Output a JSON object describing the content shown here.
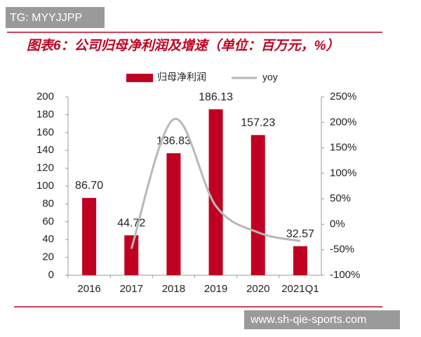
{
  "chart_data": {
    "type": "bar-line",
    "title": "图表6：公司归母净利润及增速（单位：百万元，%）",
    "categories": [
      "2016",
      "2017",
      "2018",
      "2019",
      "2020",
      "2021Q1"
    ],
    "series": [
      {
        "name": "归母净利润",
        "type": "bar",
        "color": "#c00022",
        "values": [
          86.7,
          44.72,
          136.83,
          186.13,
          157.23,
          32.57
        ],
        "value_labels": [
          "86.70",
          "44.72",
          "136.83",
          "186.13",
          "157.23",
          "32.57"
        ]
      },
      {
        "name": "yoy",
        "type": "line",
        "axis": "y2",
        "color": "#b8b8b8",
        "values": [
          null,
          -48,
          206,
          36,
          -16,
          -33
        ]
      }
    ],
    "ylim": [
      0,
      200
    ],
    "yticks": [
      0,
      20,
      40,
      60,
      80,
      100,
      120,
      140,
      160,
      180,
      200
    ],
    "y2lim": [
      -100,
      250
    ],
    "y2ticks": [
      {
        "value": -100,
        "label": "-100%"
      },
      {
        "value": -50,
        "label": "-50%"
      },
      {
        "value": 0,
        "label": "0%"
      },
      {
        "value": 50,
        "label": "50%"
      },
      {
        "value": 100,
        "label": "100%"
      },
      {
        "value": 150,
        "label": "150%"
      },
      {
        "value": 200,
        "label": "200%"
      },
      {
        "value": 250,
        "label": "250%"
      }
    ],
    "legend": "top"
  },
  "watermarks": [
    "TG: MYYJJPP",
    "www.sh-qie-sports.com"
  ]
}
